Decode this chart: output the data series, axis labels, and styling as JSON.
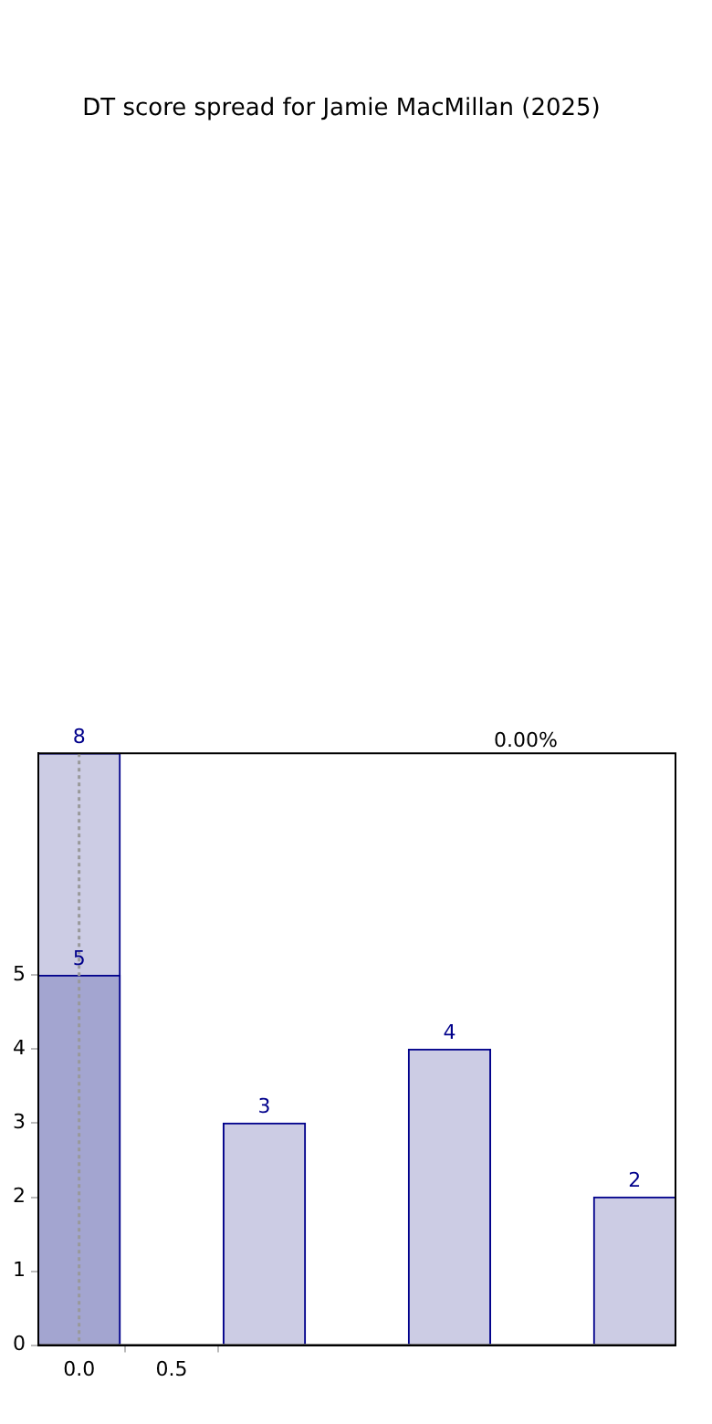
{
  "chart_data": {
    "type": "bar",
    "title": "DT score spread for Jamie MacMillan (2025)",
    "series": [
      {
        "x": [
          0,
          1,
          2,
          3
        ],
        "values": [
          8,
          3,
          4,
          2
        ],
        "color": "#cccce4"
      },
      {
        "x": [
          0
        ],
        "values": [
          5
        ],
        "color": "#a3a5d0"
      }
    ],
    "xlim": [
      -0.22,
      3.22
    ],
    "xticks": [
      {
        "value": 0,
        "label": "0.0"
      },
      {
        "value": 0.5,
        "label": "0.5"
      }
    ],
    "ylim": [
      0,
      8
    ],
    "yticks": [
      0,
      1,
      2,
      3,
      4,
      5
    ],
    "ref_lines": [
      {
        "axis": "x",
        "value": 0,
        "label": null,
        "color": "#999999",
        "line_style": "dotted"
      }
    ],
    "annotations": [
      "0.00%"
    ],
    "data_labels": true,
    "grid": false,
    "legend": false
  }
}
